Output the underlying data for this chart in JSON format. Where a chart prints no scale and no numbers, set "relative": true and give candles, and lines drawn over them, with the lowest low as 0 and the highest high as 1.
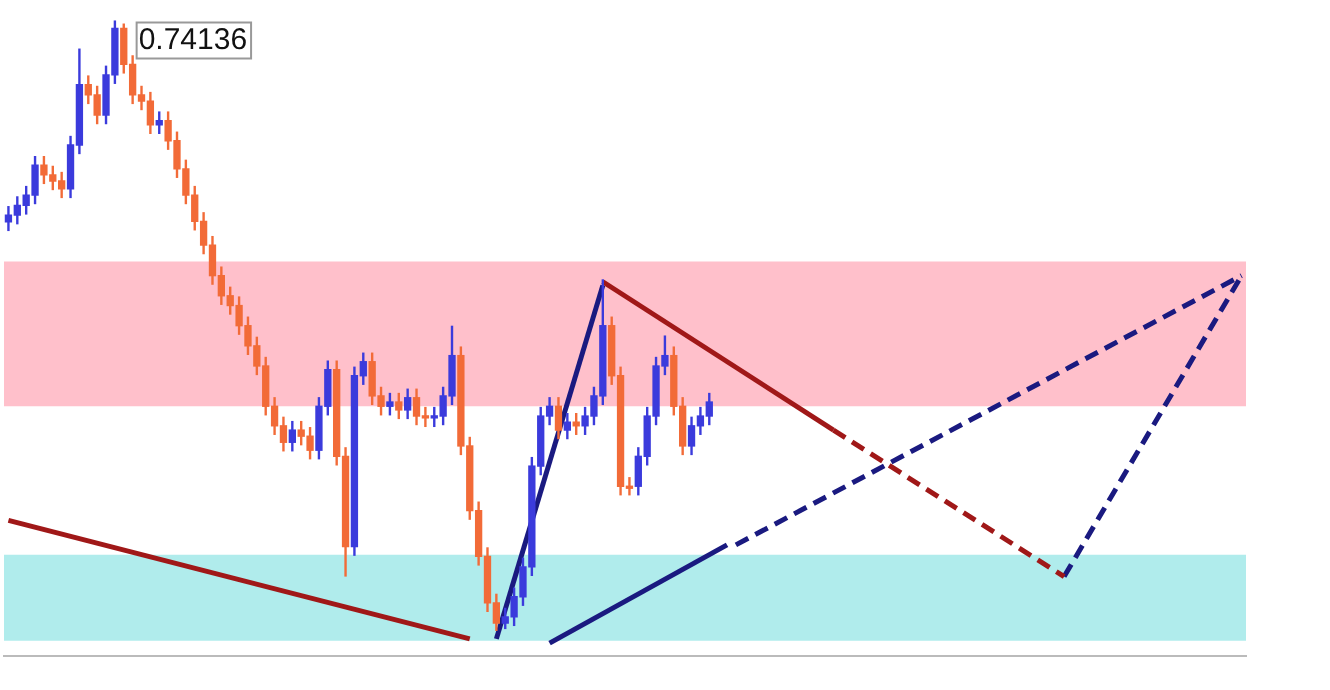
{
  "chart_data": {
    "type": "candlestick",
    "relative": true,
    "legend": false,
    "grid": false,
    "categories": [
      null,
      null,
      null,
      null,
      null,
      null,
      null,
      null,
      null,
      null,
      null,
      null,
      null,
      null,
      null,
      null,
      null,
      null,
      null,
      null,
      null,
      null,
      null,
      null,
      null,
      null,
      null,
      null,
      null,
      null,
      null,
      null,
      null,
      null,
      null,
      null,
      null,
      null,
      null,
      null,
      null,
      null,
      null,
      null,
      null,
      null,
      null,
      null,
      null,
      null,
      null,
      null,
      null,
      null,
      null,
      null,
      null,
      null,
      null,
      null,
      null,
      null,
      null,
      null,
      null,
      null,
      null,
      null,
      null,
      null,
      null,
      null,
      null,
      null,
      null,
      null,
      null,
      null,
      null,
      null,
      null,
      null,
      null,
      null,
      null,
      null,
      null,
      null,
      null,
      null,
      null,
      null,
      null,
      null,
      null,
      null,
      null,
      null,
      null,
      null,
      null,
      null,
      null,
      null,
      null,
      null,
      null,
      null,
      null,
      null,
      null,
      null,
      null,
      null,
      null,
      null,
      null,
      null,
      null,
      null,
      null,
      null,
      null,
      null,
      null,
      null,
      null,
      null,
      null,
      null,
      null,
      null,
      null,
      null,
      null,
      null,
      null,
      null,
      null,
      null
    ],
    "ohlc": [
      [
        0.67,
        0.696,
        0.655,
        0.681
      ],
      [
        0.681,
        0.712,
        0.666,
        0.697
      ],
      [
        0.697,
        0.729,
        0.682,
        0.714
      ],
      [
        0.714,
        0.778,
        0.699,
        0.763
      ],
      [
        0.763,
        0.778,
        0.732,
        0.747
      ],
      [
        0.747,
        0.762,
        0.722,
        0.737
      ],
      [
        0.737,
        0.752,
        0.709,
        0.724
      ],
      [
        0.724,
        0.811,
        0.709,
        0.796
      ],
      [
        0.796,
        0.954,
        0.781,
        0.895
      ],
      [
        0.895,
        0.91,
        0.863,
        0.878
      ],
      [
        0.878,
        0.893,
        0.83,
        0.845
      ],
      [
        0.845,
        0.926,
        0.83,
        0.911
      ],
      [
        0.911,
        1,
        0.896,
        0.987
      ],
      [
        0.987,
        0.995,
        0.913,
        0.928
      ],
      [
        0.928,
        0.943,
        0.863,
        0.878
      ],
      [
        0.878,
        0.893,
        0.853,
        0.868
      ],
      [
        0.868,
        0.883,
        0.814,
        0.829
      ],
      [
        0.829,
        0.851,
        0.814,
        0.836
      ],
      [
        0.836,
        0.851,
        0.788,
        0.803
      ],
      [
        0.803,
        0.818,
        0.742,
        0.757
      ],
      [
        0.757,
        0.772,
        0.699,
        0.714
      ],
      [
        0.714,
        0.729,
        0.656,
        0.671
      ],
      [
        0.671,
        0.686,
        0.617,
        0.632
      ],
      [
        0.632,
        0.647,
        0.567,
        0.582
      ],
      [
        0.582,
        0.597,
        0.534,
        0.549
      ],
      [
        0.549,
        0.564,
        0.518,
        0.533
      ],
      [
        0.533,
        0.548,
        0.485,
        0.5
      ],
      [
        0.5,
        0.515,
        0.452,
        0.467
      ],
      [
        0.467,
        0.482,
        0.419,
        0.434
      ],
      [
        0.434,
        0.449,
        0.353,
        0.368
      ],
      [
        0.368,
        0.383,
        0.321,
        0.336
      ],
      [
        0.336,
        0.351,
        0.294,
        0.309
      ],
      [
        0.309,
        0.344,
        0.294,
        0.329
      ],
      [
        0.329,
        0.344,
        0.304,
        0.319
      ],
      [
        0.319,
        0.334,
        0.281,
        0.296
      ],
      [
        0.296,
        0.383,
        0.281,
        0.368
      ],
      [
        0.368,
        0.443,
        0.353,
        0.428
      ],
      [
        0.428,
        0.443,
        0.271,
        0.286
      ],
      [
        0.286,
        0.301,
        0.089,
        0.138
      ],
      [
        0.138,
        0.433,
        0.123,
        0.418
      ],
      [
        0.418,
        0.456,
        0.403,
        0.441
      ],
      [
        0.441,
        0.456,
        0.37,
        0.385
      ],
      [
        0.385,
        0.4,
        0.353,
        0.368
      ],
      [
        0.368,
        0.39,
        0.353,
        0.375
      ],
      [
        0.375,
        0.39,
        0.347,
        0.362
      ],
      [
        0.362,
        0.397,
        0.347,
        0.382
      ],
      [
        0.382,
        0.397,
        0.337,
        0.352
      ],
      [
        0.352,
        0.367,
        0.334,
        0.349
      ],
      [
        0.349,
        0.367,
        0.334,
        0.352
      ],
      [
        0.352,
        0.4,
        0.337,
        0.385
      ],
      [
        0.385,
        0.5,
        0.37,
        0.451
      ],
      [
        0.451,
        0.466,
        0.288,
        0.303
      ],
      [
        0.303,
        0.318,
        0.182,
        0.197
      ],
      [
        0.197,
        0.212,
        0.107,
        0.122
      ],
      [
        0.122,
        0.137,
        0.031,
        0.046
      ],
      [
        0.046,
        0.061,
        0,
        0.013
      ],
      [
        0.013,
        0.038,
        0.003,
        0.023
      ],
      [
        0.023,
        0.071,
        0.008,
        0.056
      ],
      [
        0.056,
        0.12,
        0.041,
        0.105
      ],
      [
        0.105,
        0.285,
        0.09,
        0.27
      ],
      [
        0.27,
        0.367,
        0.255,
        0.352
      ],
      [
        0.352,
        0.383,
        0.337,
        0.368
      ],
      [
        0.368,
        0.383,
        0.314,
        0.329
      ],
      [
        0.329,
        0.357,
        0.314,
        0.342
      ],
      [
        0.342,
        0.357,
        0.321,
        0.336
      ],
      [
        0.336,
        0.367,
        0.321,
        0.352
      ],
      [
        0.352,
        0.4,
        0.337,
        0.385
      ],
      [
        0.385,
        0.576,
        0.37,
        0.5
      ],
      [
        0.5,
        0.515,
        0.403,
        0.418
      ],
      [
        0.418,
        0.433,
        0.222,
        0.237
      ],
      [
        0.237,
        0.252,
        0.222,
        0.237
      ],
      [
        0.237,
        0.301,
        0.222,
        0.286
      ],
      [
        0.286,
        0.367,
        0.271,
        0.352
      ],
      [
        0.352,
        0.449,
        0.337,
        0.434
      ],
      [
        0.434,
        0.484,
        0.419,
        0.451
      ],
      [
        0.451,
        0.466,
        0.353,
        0.368
      ],
      [
        0.368,
        0.383,
        0.288,
        0.303
      ],
      [
        0.303,
        0.351,
        0.288,
        0.336
      ],
      [
        0.336,
        0.367,
        0.321,
        0.352
      ],
      [
        0.352,
        0.39,
        0.337,
        0.375
      ],
      null,
      null,
      null,
      null,
      null,
      null,
      null,
      null,
      null,
      null,
      null,
      null,
      null,
      null,
      null,
      null,
      null,
      null,
      null,
      null,
      null,
      null,
      null,
      null,
      null,
      null,
      null,
      null,
      null,
      null,
      null,
      null,
      null,
      null,
      null,
      null,
      null,
      null,
      null,
      null,
      null,
      null,
      null,
      null,
      null,
      null,
      null,
      null,
      null,
      null,
      null,
      null,
      null,
      null,
      null,
      null,
      null,
      null,
      null,
      null
    ],
    "colors": [
      "#3b3bdc",
      "#3b3bdc",
      "#3b3bdc",
      "#3b3bdc",
      "#f26b38",
      "#f26b38",
      "#f26b38",
      "#3b3bdc",
      "#3b3bdc",
      "#f26b38",
      "#f26b38",
      "#3b3bdc",
      "#3b3bdc",
      "#f26b38",
      "#f26b38",
      "#f26b38",
      "#f26b38",
      "#3b3bdc",
      "#f26b38",
      "#f26b38",
      "#f26b38",
      "#f26b38",
      "#f26b38",
      "#f26b38",
      "#f26b38",
      "#f26b38",
      "#f26b38",
      "#f26b38",
      "#f26b38",
      "#f26b38",
      "#f26b38",
      "#f26b38",
      "#3b3bdc",
      "#f26b38",
      "#f26b38",
      "#3b3bdc",
      "#3b3bdc",
      "#f26b38",
      "#f26b38",
      "#3b3bdc",
      "#3b3bdc",
      "#f26b38",
      "#f26b38",
      "#3b3bdc",
      "#f26b38",
      "#3b3bdc",
      "#f26b38",
      "#f26b38",
      "#3b3bdc",
      "#3b3bdc",
      "#3b3bdc",
      "#f26b38",
      "#f26b38",
      "#f26b38",
      "#f26b38",
      "#f26b38",
      "#3b3bdc",
      "#3b3bdc",
      "#3b3bdc",
      "#3b3bdc",
      "#3b3bdc",
      "#3b3bdc",
      "#f26b38",
      "#3b3bdc",
      "#f26b38",
      "#3b3bdc",
      "#3b3bdc",
      "#3b3bdc",
      "#f26b38",
      "#f26b38",
      "#f26b38",
      "#3b3bdc",
      "#3b3bdc",
      "#3b3bdc",
      "#3b3bdc",
      "#f26b38",
      "#f26b38",
      "#3b3bdc",
      "#3b3bdc",
      "#3b3bdc",
      null,
      null,
      null,
      null,
      null,
      null,
      null,
      null,
      null,
      null,
      null,
      null,
      null,
      null,
      null,
      null,
      null,
      null,
      null,
      null,
      null,
      null,
      null,
      null,
      null,
      null,
      null,
      null,
      null,
      null,
      null,
      null,
      null,
      null,
      null,
      null,
      null,
      null,
      null,
      null,
      null,
      null,
      null,
      null,
      null,
      null,
      null,
      null,
      null,
      null,
      null,
      null,
      null,
      null,
      null,
      null,
      null,
      null,
      null,
      null
    ],
    "series": [
      {
        "type": "line",
        "color": "#a01818",
        "line_style": "solid",
        "values": [
          0.181,
          null,
          null,
          null,
          null,
          null,
          null,
          null,
          null,
          null,
          null,
          null,
          null,
          null,
          null,
          null,
          null,
          null,
          null,
          null,
          null,
          null,
          null,
          null,
          null,
          null,
          null,
          null,
          null,
          null,
          null,
          null,
          null,
          null,
          null,
          null,
          null,
          null,
          null,
          null,
          null,
          null,
          null,
          null,
          null,
          null,
          null,
          null,
          null,
          null,
          null,
          null,
          -0.013,
          null,
          null,
          null,
          null,
          null,
          null,
          null,
          null,
          null,
          null,
          null,
          null,
          null,
          null,
          null,
          null,
          null,
          null,
          null,
          null,
          null,
          null,
          null,
          null,
          null,
          null,
          null,
          null,
          null,
          null,
          null,
          null,
          null,
          null,
          null,
          null,
          null,
          null,
          null,
          null,
          null,
          null,
          null,
          null,
          null,
          null,
          null,
          null,
          null,
          null,
          null,
          null,
          null,
          null,
          null,
          null,
          null,
          null,
          null,
          null,
          null,
          null,
          null,
          null,
          null,
          null,
          null,
          null,
          null,
          null,
          null,
          null,
          null,
          null,
          null,
          null,
          null,
          null,
          null,
          null,
          null,
          null,
          null,
          null,
          null,
          null,
          null
        ]
      },
      {
        "type": "line",
        "color": "#a01818",
        "line_style": "solid",
        "values": [
          null,
          null,
          null,
          null,
          null,
          null,
          null,
          null,
          null,
          null,
          null,
          null,
          null,
          null,
          null,
          null,
          null,
          null,
          null,
          null,
          null,
          null,
          null,
          null,
          null,
          null,
          null,
          null,
          null,
          null,
          null,
          null,
          null,
          null,
          null,
          null,
          null,
          null,
          null,
          null,
          null,
          null,
          null,
          null,
          null,
          null,
          null,
          null,
          null,
          null,
          null,
          null,
          null,
          null,
          null,
          null,
          null,
          null,
          null,
          null,
          null,
          null,
          null,
          null,
          null,
          null,
          null,
          0.572,
          null,
          null,
          null,
          null,
          null,
          null,
          null,
          null,
          null,
          null,
          null,
          null,
          null,
          null,
          null,
          null,
          null,
          null,
          null,
          null,
          null,
          null,
          null,
          null,
          null,
          0.329,
          null,
          null,
          null,
          null,
          null,
          null,
          null,
          null,
          null,
          null,
          null,
          null,
          null,
          null,
          null,
          null,
          null,
          null,
          null,
          null,
          null,
          null,
          null,
          null,
          null,
          null,
          null,
          null,
          null,
          null,
          null,
          null,
          null,
          null,
          null,
          null,
          null,
          null,
          null,
          null,
          null,
          null,
          null,
          null,
          null,
          null
        ]
      },
      {
        "type": "line",
        "color": "#a01818",
        "line_style": "dashed",
        "values": [
          null,
          null,
          null,
          null,
          null,
          null,
          null,
          null,
          null,
          null,
          null,
          null,
          null,
          null,
          null,
          null,
          null,
          null,
          null,
          null,
          null,
          null,
          null,
          null,
          null,
          null,
          null,
          null,
          null,
          null,
          null,
          null,
          null,
          null,
          null,
          null,
          null,
          null,
          null,
          null,
          null,
          null,
          null,
          null,
          null,
          null,
          null,
          null,
          null,
          null,
          null,
          null,
          null,
          null,
          null,
          null,
          null,
          null,
          null,
          null,
          null,
          null,
          null,
          null,
          null,
          null,
          null,
          null,
          null,
          null,
          null,
          null,
          null,
          null,
          null,
          null,
          null,
          null,
          null,
          null,
          null,
          null,
          null,
          null,
          null,
          null,
          null,
          null,
          null,
          null,
          null,
          null,
          null,
          0.329,
          null,
          null,
          null,
          null,
          null,
          null,
          null,
          null,
          null,
          null,
          null,
          null,
          null,
          null,
          null,
          null,
          null,
          null,
          null,
          null,
          null,
          null,
          null,
          null,
          null,
          0.089,
          null,
          null,
          null,
          null,
          null,
          null,
          null,
          null,
          null,
          null,
          null,
          null,
          null,
          null,
          null,
          null,
          null,
          null,
          null,
          null
        ]
      },
      {
        "type": "line",
        "color": "#1a1a80",
        "line_style": "solid",
        "values": [
          null,
          null,
          null,
          null,
          null,
          null,
          null,
          null,
          null,
          null,
          null,
          null,
          null,
          null,
          null,
          null,
          null,
          null,
          null,
          null,
          null,
          null,
          null,
          null,
          null,
          null,
          null,
          null,
          null,
          null,
          null,
          null,
          null,
          null,
          null,
          null,
          null,
          null,
          null,
          null,
          null,
          null,
          null,
          null,
          null,
          null,
          null,
          null,
          null,
          null,
          null,
          null,
          null,
          null,
          null,
          -0.013,
          null,
          null,
          null,
          null,
          null,
          null,
          null,
          null,
          null,
          null,
          null,
          0.566,
          null,
          null,
          null,
          null,
          null,
          null,
          null,
          null,
          null,
          null,
          null,
          null,
          null,
          null,
          null,
          null,
          null,
          null,
          null,
          null,
          null,
          null,
          null,
          null,
          null,
          null,
          null,
          null,
          null,
          null,
          null,
          null,
          null,
          null,
          null,
          null,
          null,
          null,
          null,
          null,
          null,
          null,
          null,
          null,
          null,
          null,
          null,
          null,
          null,
          null,
          null,
          null,
          null,
          null,
          null,
          null,
          null,
          null,
          null,
          null,
          null,
          null,
          null,
          null,
          null,
          null,
          null,
          null,
          null,
          null,
          null,
          null
        ]
      },
      {
        "type": "line",
        "color": "#1a1a80",
        "line_style": "solid",
        "values": [
          null,
          null,
          null,
          null,
          null,
          null,
          null,
          null,
          null,
          null,
          null,
          null,
          null,
          null,
          null,
          null,
          null,
          null,
          null,
          null,
          null,
          null,
          null,
          null,
          null,
          null,
          null,
          null,
          null,
          null,
          null,
          null,
          null,
          null,
          null,
          null,
          null,
          null,
          null,
          null,
          null,
          null,
          null,
          null,
          null,
          null,
          null,
          null,
          null,
          null,
          null,
          null,
          null,
          null,
          null,
          null,
          null,
          null,
          null,
          null,
          null,
          -0.02,
          null,
          null,
          null,
          null,
          null,
          null,
          null,
          null,
          null,
          null,
          null,
          null,
          null,
          null,
          null,
          null,
          null,
          null,
          null,
          0.141,
          null,
          null,
          null,
          null,
          null,
          null,
          null,
          null,
          null,
          null,
          null,
          null,
          null,
          null,
          null,
          null,
          null,
          null,
          null,
          null,
          null,
          null,
          null,
          null,
          null,
          null,
          null,
          null,
          null,
          null,
          null,
          null,
          null,
          null,
          null,
          null,
          null,
          null,
          null,
          null,
          null,
          null,
          null,
          null,
          null,
          null,
          null,
          null,
          null,
          null,
          null,
          null,
          null,
          null,
          null,
          null,
          null,
          null
        ]
      },
      {
        "type": "line",
        "color": "#1a1a80",
        "line_style": "dashed",
        "values": [
          null,
          null,
          null,
          null,
          null,
          null,
          null,
          null,
          null,
          null,
          null,
          null,
          null,
          null,
          null,
          null,
          null,
          null,
          null,
          null,
          null,
          null,
          null,
          null,
          null,
          null,
          null,
          null,
          null,
          null,
          null,
          null,
          null,
          null,
          null,
          null,
          null,
          null,
          null,
          null,
          null,
          null,
          null,
          null,
          null,
          null,
          null,
          null,
          null,
          null,
          null,
          null,
          null,
          null,
          null,
          null,
          null,
          null,
          null,
          null,
          null,
          null,
          null,
          null,
          null,
          null,
          null,
          null,
          null,
          null,
          null,
          null,
          null,
          null,
          null,
          null,
          null,
          null,
          null,
          null,
          null,
          null,
          0.141,
          null,
          null,
          null,
          null,
          null,
          null,
          null,
          null,
          null,
          null,
          null,
          null,
          null,
          null,
          null,
          null,
          null,
          null,
          null,
          null,
          null,
          null,
          null,
          null,
          null,
          null,
          null,
          null,
          null,
          null,
          null,
          null,
          null,
          null,
          null,
          null,
          null,
          null,
          null,
          null,
          null,
          null,
          null,
          null,
          null,
          null,
          null,
          null,
          null,
          null,
          null,
          null,
          null,
          null,
          null,
          null,
          0.582
        ]
      },
      {
        "type": "line",
        "color": "#1a1a80",
        "line_style": "dashed",
        "values": [
          null,
          null,
          null,
          null,
          null,
          null,
          null,
          null,
          null,
          null,
          null,
          null,
          null,
          null,
          null,
          null,
          null,
          null,
          null,
          null,
          null,
          null,
          null,
          null,
          null,
          null,
          null,
          null,
          null,
          null,
          null,
          null,
          null,
          null,
          null,
          null,
          null,
          null,
          null,
          null,
          null,
          null,
          null,
          null,
          null,
          null,
          null,
          null,
          null,
          null,
          null,
          null,
          null,
          null,
          null,
          null,
          null,
          null,
          null,
          null,
          null,
          null,
          null,
          null,
          null,
          null,
          null,
          null,
          null,
          null,
          null,
          null,
          null,
          null,
          null,
          null,
          null,
          null,
          null,
          null,
          null,
          null,
          null,
          null,
          null,
          null,
          null,
          null,
          null,
          null,
          null,
          null,
          null,
          null,
          null,
          null,
          null,
          null,
          null,
          null,
          null,
          null,
          null,
          null,
          null,
          null,
          null,
          null,
          null,
          null,
          null,
          null,
          null,
          null,
          null,
          null,
          null,
          null,
          null,
          0.089,
          null,
          null,
          null,
          null,
          null,
          null,
          null,
          null,
          null,
          null,
          null,
          null,
          null,
          null,
          null,
          null,
          null,
          null,
          null,
          0.582
        ]
      }
    ],
    "bands": [
      {
        "axis": "y",
        "from": 0.368,
        "to": 0.605,
        "color": "#ffc0cb"
      },
      {
        "axis": "y",
        "from": -0.016,
        "to": 0.125,
        "color": "#b0ecec"
      }
    ],
    "annotations": [
      "0.74136"
    ]
  }
}
